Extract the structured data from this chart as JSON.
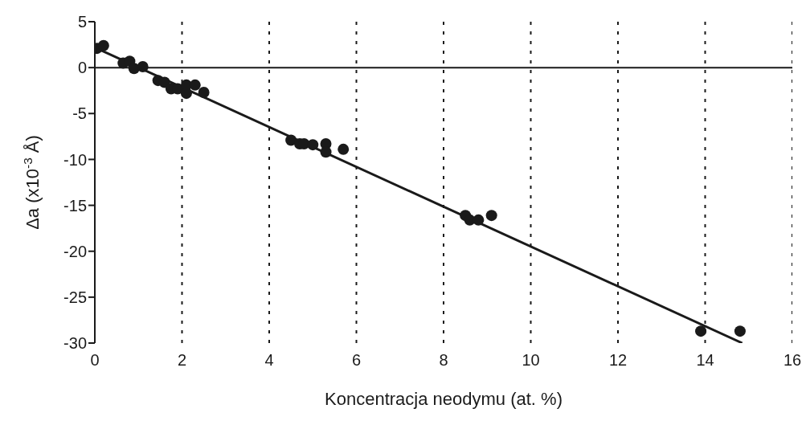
{
  "chart_data": {
    "type": "scatter",
    "xlabel": "Koncentracja neodymu (at. %)",
    "ylabel": "Δa (x10$^{-3}$ Å)",
    "xlim": [
      0,
      16
    ],
    "xticks": [
      0,
      2,
      4,
      6,
      8,
      10,
      12,
      14,
      16
    ],
    "ylim": [
      -30,
      5
    ],
    "yticks": [
      -30,
      -25,
      -20,
      -15,
      -10,
      -5,
      0,
      5
    ],
    "grid": "x",
    "ref_lines": [
      {
        "axis": "y",
        "value": 0,
        "label": null,
        "color": "#1a1a1a",
        "line_style": "solid"
      }
    ],
    "series": [
      {
        "color": "#1a1a1a",
        "marker": "circle",
        "x": [
          0.05,
          0.2,
          0.65,
          0.8,
          0.9,
          1.1,
          1.45,
          1.6,
          1.75,
          1.9,
          2.1,
          2.1,
          2.3,
          2.5,
          4.5,
          4.7,
          4.8,
          5.0,
          5.3,
          5.3,
          5.7,
          8.5,
          8.6,
          8.8,
          9.1,
          13.9,
          14.8
        ],
        "values": [
          2.1,
          2.4,
          0.5,
          0.7,
          -0.1,
          0.1,
          -1.4,
          -1.6,
          -2.3,
          -2.3,
          -1.9,
          -2.8,
          -1.9,
          -2.7,
          -7.9,
          -8.3,
          -8.3,
          -8.4,
          -8.3,
          -9.2,
          -8.9,
          -16.1,
          -16.6,
          -16.6,
          -16.1,
          -28.7,
          -28.7
        ]
      },
      {
        "type": "line",
        "color": "#1a1a1a",
        "x": [
          0.0,
          14.85
        ],
        "values": [
          2.2,
          -30
        ],
        "line_style": "solid",
        "marker": "none"
      }
    ]
  }
}
